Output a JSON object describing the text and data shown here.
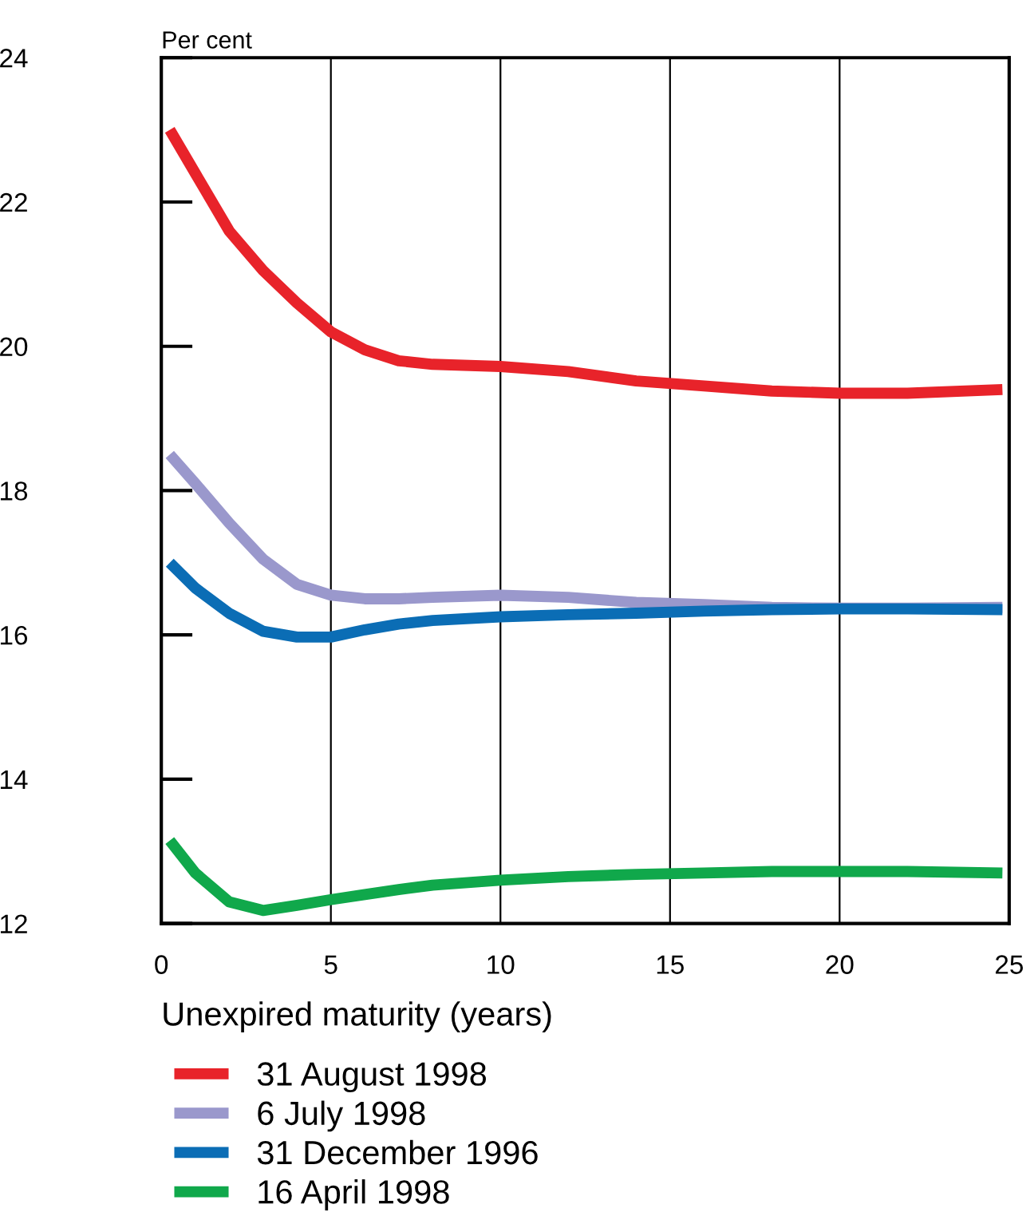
{
  "chart_data": {
    "type": "line",
    "ylabel": "Per cent",
    "xlabel": "Unexpired maturity (years)",
    "xlim": [
      0,
      25
    ],
    "xticks": [
      0,
      5,
      10,
      15,
      20,
      25
    ],
    "ylim": [
      12,
      24
    ],
    "yticks": [
      12,
      14,
      16,
      18,
      20,
      22,
      24
    ],
    "grid": "x",
    "legend": "bottom",
    "marker": "none",
    "line_style": "solid",
    "x": [
      0.25,
      1,
      2,
      3,
      4,
      5,
      6,
      7,
      8,
      10,
      12,
      14,
      16,
      18,
      20,
      22,
      24.8
    ],
    "series": [
      {
        "name": "31 August 1998",
        "color": "#e8232a",
        "values": [
          23.0,
          22.4,
          21.6,
          21.05,
          20.6,
          20.2,
          19.95,
          19.8,
          19.75,
          19.72,
          19.65,
          19.52,
          19.45,
          19.38,
          19.35,
          19.35,
          19.4
        ]
      },
      {
        "name": "6 July 1998",
        "color": "#9a98cc",
        "values": [
          18.5,
          18.1,
          17.55,
          17.05,
          16.7,
          16.55,
          16.5,
          16.5,
          16.52,
          16.55,
          16.52,
          16.45,
          16.42,
          16.38,
          16.37,
          16.37,
          16.38
        ]
      },
      {
        "name": "31 December 1996",
        "color": "#0b6db5",
        "values": [
          17.0,
          16.65,
          16.3,
          16.05,
          15.97,
          15.97,
          16.07,
          16.15,
          16.2,
          16.25,
          16.28,
          16.3,
          16.33,
          16.35,
          16.36,
          16.36,
          16.35
        ]
      },
      {
        "name": "16 April 1998",
        "color": "#10a84b",
        "values": [
          13.15,
          12.7,
          12.3,
          12.18,
          12.25,
          12.33,
          12.4,
          12.47,
          12.53,
          12.6,
          12.65,
          12.68,
          12.7,
          12.72,
          12.72,
          12.72,
          12.7
        ]
      }
    ]
  }
}
